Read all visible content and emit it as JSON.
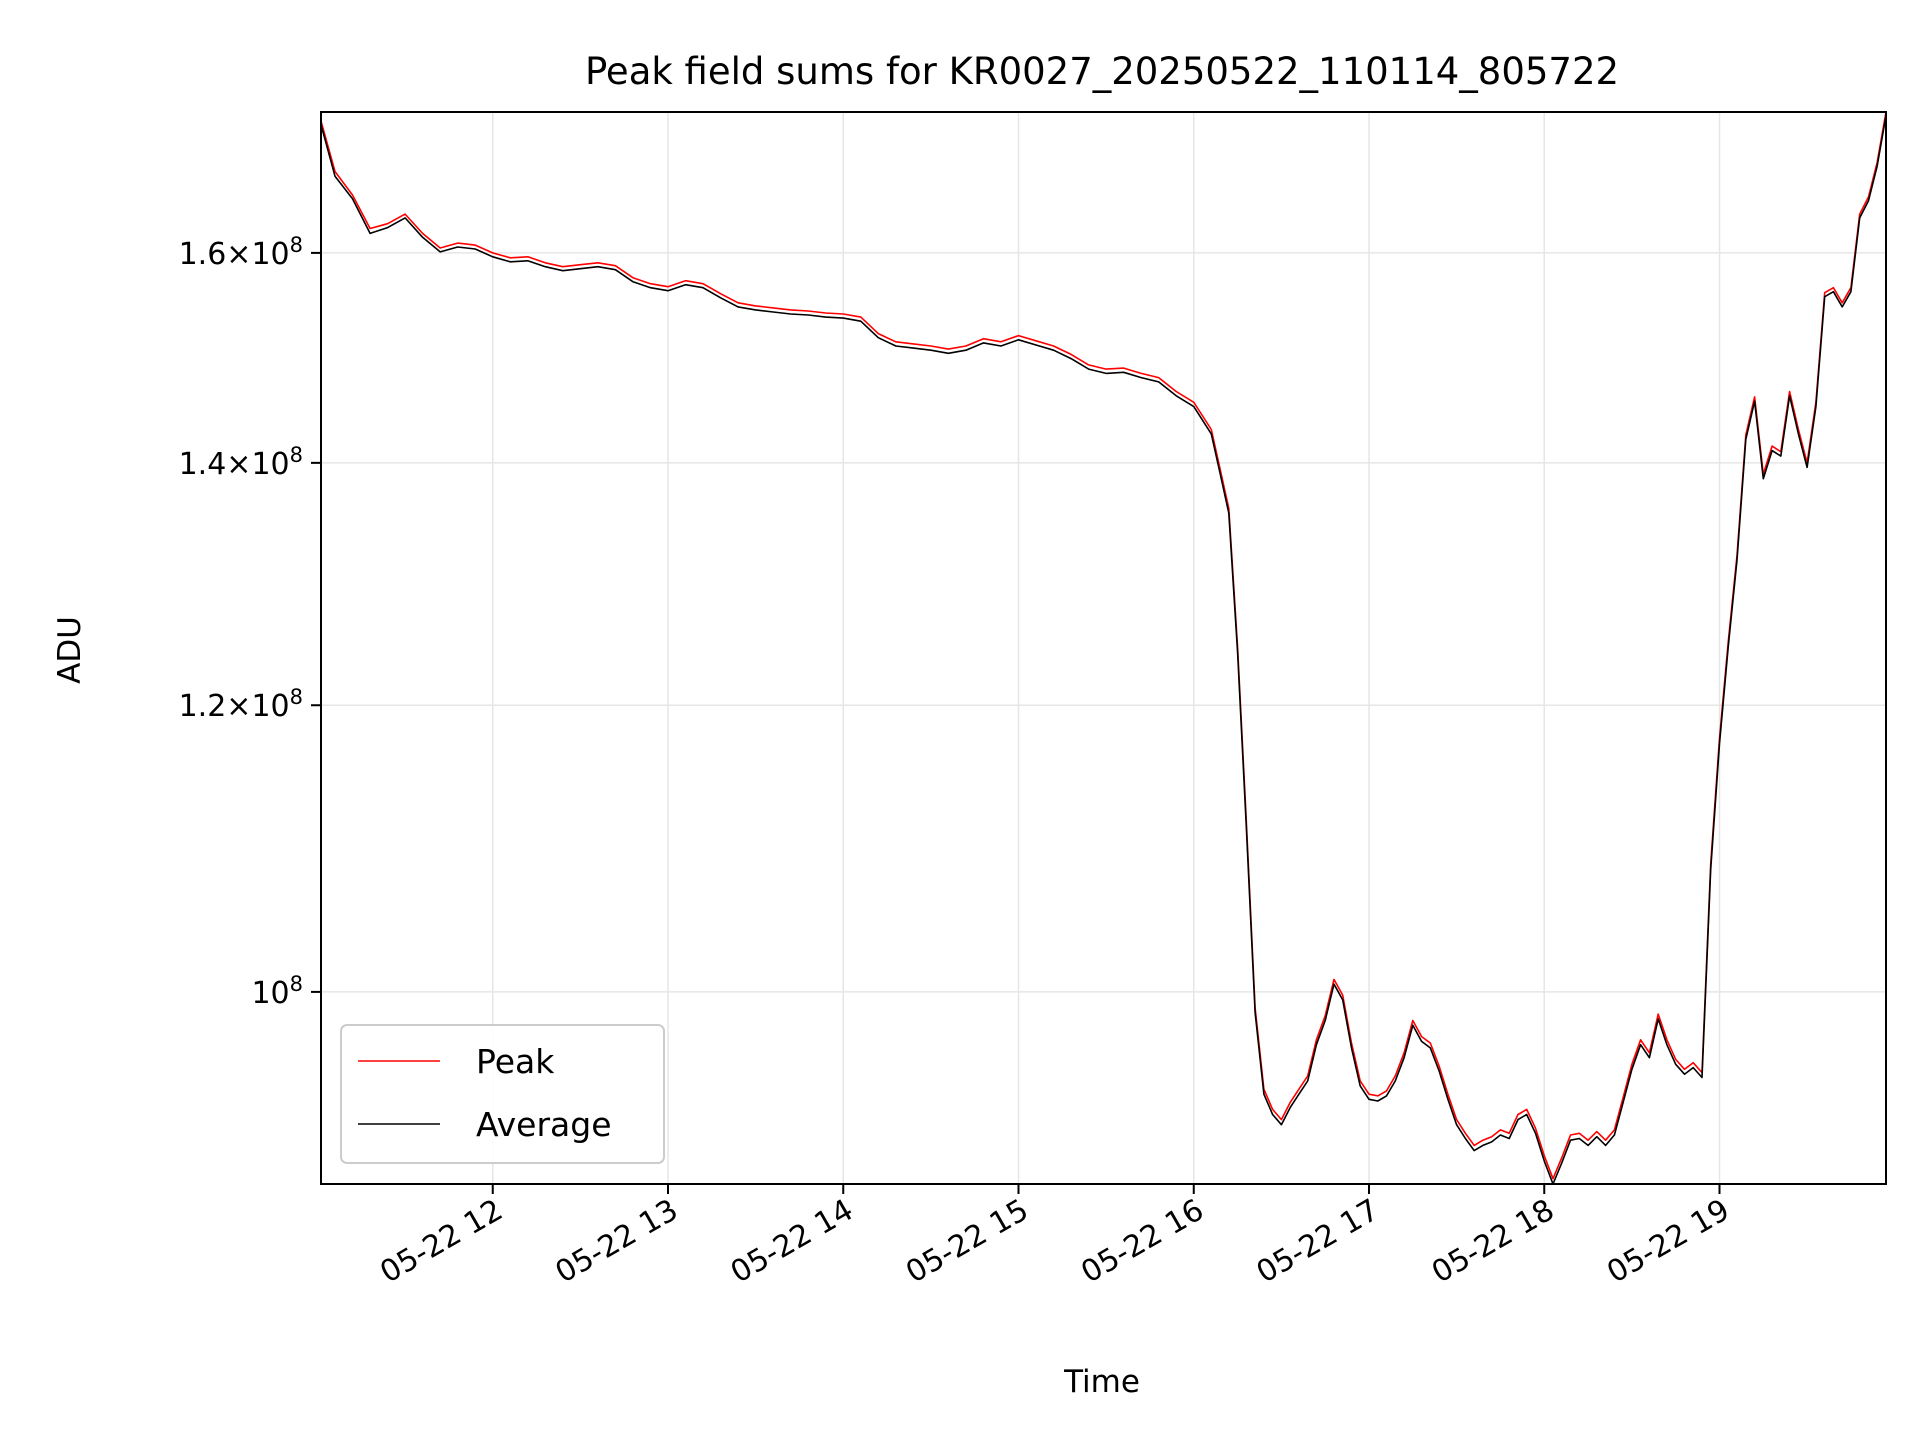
{
  "chart_data": {
    "type": "line",
    "title": "Peak field sums for KR0027_20250522_110114_805722",
    "xlabel": "Time",
    "ylabel": "ADU",
    "yscale": "log",
    "xlim_hours": [
      11.02,
      19.95
    ],
    "ylim": [
      88500000,
      175000000
    ],
    "x_ticks": [
      {
        "hour": 12,
        "label": "05-22 12"
      },
      {
        "hour": 13,
        "label": "05-22 13"
      },
      {
        "hour": 14,
        "label": "05-22 14"
      },
      {
        "hour": 15,
        "label": "05-22 15"
      },
      {
        "hour": 16,
        "label": "05-22 16"
      },
      {
        "hour": 17,
        "label": "05-22 17"
      },
      {
        "hour": 18,
        "label": "05-22 18"
      },
      {
        "hour": 19,
        "label": "05-22 19"
      }
    ],
    "y_ticks": [
      {
        "value": 100000000,
        "mantissa": "",
        "exponent": "8"
      },
      {
        "value": 120000000,
        "mantissa": "1.2",
        "exponent": "8"
      },
      {
        "value": 140000000,
        "mantissa": "1.4",
        "exponent": "8"
      },
      {
        "value": 160000000,
        "mantissa": "1.6",
        "exponent": "8"
      }
    ],
    "grid": true,
    "legend_position": "lower-left",
    "colors": {
      "peak": "#ff0000",
      "average": "#000000",
      "grid": "#e6e6e6"
    },
    "series": [
      {
        "name": "Peak",
        "color": "#ff0000",
        "x_hours": [
          11.02,
          11.1,
          11.2,
          11.3,
          11.4,
          11.5,
          11.6,
          11.7,
          11.8,
          11.9,
          12.0,
          12.1,
          12.2,
          12.3,
          12.4,
          12.5,
          12.6,
          12.7,
          12.8,
          12.9,
          13.0,
          13.1,
          13.2,
          13.3,
          13.4,
          13.5,
          13.6,
          13.7,
          13.8,
          13.9,
          14.0,
          14.1,
          14.2,
          14.3,
          14.4,
          14.5,
          14.6,
          14.7,
          14.8,
          14.9,
          15.0,
          15.1,
          15.2,
          15.3,
          15.4,
          15.5,
          15.6,
          15.7,
          15.8,
          15.9,
          16.0,
          16.1,
          16.15,
          16.2,
          16.25,
          16.3,
          16.35,
          16.4,
          16.45,
          16.5,
          16.55,
          16.6,
          16.65,
          16.7,
          16.75,
          16.8,
          16.85,
          16.9,
          16.95,
          17.0,
          17.05,
          17.1,
          17.15,
          17.2,
          17.25,
          17.3,
          17.35,
          17.4,
          17.45,
          17.5,
          17.55,
          17.6,
          17.65,
          17.7,
          17.75,
          17.8,
          17.85,
          17.9,
          17.95,
          18.0,
          18.05,
          18.1,
          18.15,
          18.2,
          18.25,
          18.3,
          18.35,
          18.4,
          18.45,
          18.5,
          18.55,
          18.6,
          18.65,
          18.7,
          18.75,
          18.8,
          18.85,
          18.9,
          18.95,
          19.0,
          19.05,
          19.1,
          19.15,
          19.2,
          19.25,
          19.3,
          19.35,
          19.4,
          19.45,
          19.5,
          19.55,
          19.6,
          19.65,
          19.7,
          19.75,
          19.8,
          19.85,
          19.9,
          19.95
        ],
        "values": [
          174000000,
          168500000,
          166000000,
          162500000,
          163000000,
          164000000,
          162000000,
          160500000,
          161000000,
          160800000,
          160000000,
          159500000,
          159600000,
          159000000,
          158600000,
          158800000,
          159000000,
          158700000,
          157500000,
          156900000,
          156600000,
          157200000,
          156900000,
          155900000,
          155000000,
          154700000,
          154500000,
          154300000,
          154200000,
          154000000,
          153900000,
          153600000,
          152000000,
          151200000,
          151000000,
          150800000,
          150500000,
          150800000,
          151500000,
          151200000,
          151800000,
          151300000,
          150800000,
          150000000,
          149000000,
          148600000,
          148700000,
          148200000,
          147800000,
          146500000,
          145500000,
          143000000,
          139500000,
          136000000,
          124500000,
          111500000,
          99000000,
          94000000,
          92800000,
          92200000,
          93200000,
          94000000,
          94800000,
          97000000,
          98500000,
          100800000,
          99800000,
          96800000,
          94500000,
          93700000,
          93600000,
          93900000,
          94800000,
          96200000,
          98200000,
          97200000,
          96800000,
          95400000,
          93700000,
          92200000,
          91400000,
          90700000,
          91000000,
          91200000,
          91600000,
          91400000,
          92500000,
          92800000,
          91700000,
          90100000,
          88800000,
          90000000,
          91300000,
          91400000,
          91000000,
          91500000,
          91000000,
          91600000,
          93500000,
          95500000,
          97000000,
          96200000,
          98600000,
          97000000,
          95800000,
          95200000,
          95600000,
          95000000,
          108500000,
          117500000,
          125000000,
          132000000,
          142500000,
          146000000,
          139000000,
          141500000,
          141000000,
          146500000,
          143000000,
          140000000,
          145500000,
          156000000,
          156500000,
          155000000,
          156500000,
          164000000,
          165800000,
          169500000,
          175000000
        ]
      },
      {
        "name": "Average",
        "color": "#000000",
        "x_hours": [
          11.02,
          11.1,
          11.2,
          11.3,
          11.4,
          11.5,
          11.6,
          11.7,
          11.8,
          11.9,
          12.0,
          12.1,
          12.2,
          12.3,
          12.4,
          12.5,
          12.6,
          12.7,
          12.8,
          12.9,
          13.0,
          13.1,
          13.2,
          13.3,
          13.4,
          13.5,
          13.6,
          13.7,
          13.8,
          13.9,
          14.0,
          14.1,
          14.2,
          14.3,
          14.4,
          14.5,
          14.6,
          14.7,
          14.8,
          14.9,
          15.0,
          15.1,
          15.2,
          15.3,
          15.4,
          15.5,
          15.6,
          15.7,
          15.8,
          15.9,
          16.0,
          16.1,
          16.15,
          16.2,
          16.25,
          16.3,
          16.35,
          16.4,
          16.45,
          16.5,
          16.55,
          16.6,
          16.65,
          16.7,
          16.75,
          16.8,
          16.85,
          16.9,
          16.95,
          17.0,
          17.05,
          17.1,
          17.15,
          17.2,
          17.25,
          17.3,
          17.35,
          17.4,
          17.45,
          17.5,
          17.55,
          17.6,
          17.65,
          17.7,
          17.75,
          17.8,
          17.85,
          17.9,
          17.95,
          18.0,
          18.05,
          18.1,
          18.15,
          18.2,
          18.25,
          18.3,
          18.35,
          18.4,
          18.45,
          18.5,
          18.55,
          18.6,
          18.65,
          18.7,
          18.75,
          18.8,
          18.85,
          18.9,
          18.95,
          19.0,
          19.05,
          19.1,
          19.15,
          19.2,
          19.25,
          19.3,
          19.35,
          19.4,
          19.45,
          19.5,
          19.55,
          19.6,
          19.65,
          19.7,
          19.75,
          19.8,
          19.85,
          19.9,
          19.95
        ],
        "values": [
          173600000,
          168000000,
          165600000,
          162000000,
          162600000,
          163600000,
          161600000,
          160100000,
          160600000,
          160400000,
          159600000,
          159100000,
          159200000,
          158600000,
          158200000,
          158400000,
          158600000,
          158300000,
          157100000,
          156500000,
          156200000,
          156800000,
          156500000,
          155500000,
          154600000,
          154300000,
          154100000,
          153900000,
          153800000,
          153600000,
          153500000,
          153200000,
          151600000,
          150800000,
          150600000,
          150400000,
          150100000,
          150400000,
          151100000,
          150800000,
          151400000,
          150900000,
          150400000,
          149600000,
          148600000,
          148200000,
          148300000,
          147800000,
          147400000,
          146100000,
          145100000,
          142600000,
          139100000,
          135600000,
          124100000,
          111100000,
          98700000,
          93700000,
          92500000,
          91900000,
          92900000,
          93700000,
          94500000,
          96700000,
          98200000,
          100500000,
          99500000,
          96500000,
          94200000,
          93400000,
          93300000,
          93600000,
          94500000,
          95900000,
          97900000,
          96900000,
          96500000,
          95100000,
          93400000,
          91900000,
          91100000,
          90400000,
          90700000,
          90900000,
          91300000,
          91100000,
          92200000,
          92500000,
          91400000,
          89800000,
          88500000,
          89700000,
          91000000,
          91100000,
          90700000,
          91200000,
          90700000,
          91300000,
          93200000,
          95200000,
          96700000,
          95900000,
          98300000,
          96700000,
          95500000,
          94900000,
          95300000,
          94700000,
          108100000,
          117100000,
          124600000,
          131600000,
          142100000,
          145600000,
          138600000,
          141100000,
          140600000,
          146100000,
          142600000,
          139600000,
          145100000,
          155600000,
          156100000,
          154600000,
          156100000,
          163600000,
          165400000,
          169100000,
          174600000
        ]
      }
    ]
  }
}
